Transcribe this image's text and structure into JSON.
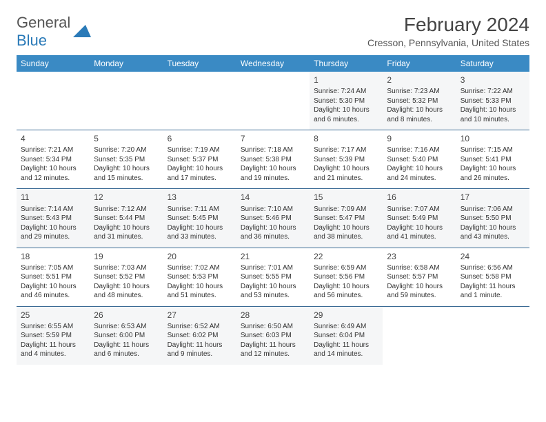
{
  "logo": {
    "text1": "General",
    "text2": "Blue"
  },
  "title": "February 2024",
  "location": "Cresson, Pennsylvania, United States",
  "colors": {
    "header_bg": "#3a8ac4",
    "border": "#3a6a94",
    "alt_row": "#f5f6f7"
  },
  "dayNames": [
    "Sunday",
    "Monday",
    "Tuesday",
    "Wednesday",
    "Thursday",
    "Friday",
    "Saturday"
  ],
  "weeks": [
    [
      null,
      null,
      null,
      null,
      {
        "n": "1",
        "sr": "Sunrise: 7:24 AM",
        "ss": "Sunset: 5:30 PM",
        "dl": "Daylight: 10 hours and 6 minutes."
      },
      {
        "n": "2",
        "sr": "Sunrise: 7:23 AM",
        "ss": "Sunset: 5:32 PM",
        "dl": "Daylight: 10 hours and 8 minutes."
      },
      {
        "n": "3",
        "sr": "Sunrise: 7:22 AM",
        "ss": "Sunset: 5:33 PM",
        "dl": "Daylight: 10 hours and 10 minutes."
      }
    ],
    [
      {
        "n": "4",
        "sr": "Sunrise: 7:21 AM",
        "ss": "Sunset: 5:34 PM",
        "dl": "Daylight: 10 hours and 12 minutes."
      },
      {
        "n": "5",
        "sr": "Sunrise: 7:20 AM",
        "ss": "Sunset: 5:35 PM",
        "dl": "Daylight: 10 hours and 15 minutes."
      },
      {
        "n": "6",
        "sr": "Sunrise: 7:19 AM",
        "ss": "Sunset: 5:37 PM",
        "dl": "Daylight: 10 hours and 17 minutes."
      },
      {
        "n": "7",
        "sr": "Sunrise: 7:18 AM",
        "ss": "Sunset: 5:38 PM",
        "dl": "Daylight: 10 hours and 19 minutes."
      },
      {
        "n": "8",
        "sr": "Sunrise: 7:17 AM",
        "ss": "Sunset: 5:39 PM",
        "dl": "Daylight: 10 hours and 21 minutes."
      },
      {
        "n": "9",
        "sr": "Sunrise: 7:16 AM",
        "ss": "Sunset: 5:40 PM",
        "dl": "Daylight: 10 hours and 24 minutes."
      },
      {
        "n": "10",
        "sr": "Sunrise: 7:15 AM",
        "ss": "Sunset: 5:41 PM",
        "dl": "Daylight: 10 hours and 26 minutes."
      }
    ],
    [
      {
        "n": "11",
        "sr": "Sunrise: 7:14 AM",
        "ss": "Sunset: 5:43 PM",
        "dl": "Daylight: 10 hours and 29 minutes."
      },
      {
        "n": "12",
        "sr": "Sunrise: 7:12 AM",
        "ss": "Sunset: 5:44 PM",
        "dl": "Daylight: 10 hours and 31 minutes."
      },
      {
        "n": "13",
        "sr": "Sunrise: 7:11 AM",
        "ss": "Sunset: 5:45 PM",
        "dl": "Daylight: 10 hours and 33 minutes."
      },
      {
        "n": "14",
        "sr": "Sunrise: 7:10 AM",
        "ss": "Sunset: 5:46 PM",
        "dl": "Daylight: 10 hours and 36 minutes."
      },
      {
        "n": "15",
        "sr": "Sunrise: 7:09 AM",
        "ss": "Sunset: 5:47 PM",
        "dl": "Daylight: 10 hours and 38 minutes."
      },
      {
        "n": "16",
        "sr": "Sunrise: 7:07 AM",
        "ss": "Sunset: 5:49 PM",
        "dl": "Daylight: 10 hours and 41 minutes."
      },
      {
        "n": "17",
        "sr": "Sunrise: 7:06 AM",
        "ss": "Sunset: 5:50 PM",
        "dl": "Daylight: 10 hours and 43 minutes."
      }
    ],
    [
      {
        "n": "18",
        "sr": "Sunrise: 7:05 AM",
        "ss": "Sunset: 5:51 PM",
        "dl": "Daylight: 10 hours and 46 minutes."
      },
      {
        "n": "19",
        "sr": "Sunrise: 7:03 AM",
        "ss": "Sunset: 5:52 PM",
        "dl": "Daylight: 10 hours and 48 minutes."
      },
      {
        "n": "20",
        "sr": "Sunrise: 7:02 AM",
        "ss": "Sunset: 5:53 PM",
        "dl": "Daylight: 10 hours and 51 minutes."
      },
      {
        "n": "21",
        "sr": "Sunrise: 7:01 AM",
        "ss": "Sunset: 5:55 PM",
        "dl": "Daylight: 10 hours and 53 minutes."
      },
      {
        "n": "22",
        "sr": "Sunrise: 6:59 AM",
        "ss": "Sunset: 5:56 PM",
        "dl": "Daylight: 10 hours and 56 minutes."
      },
      {
        "n": "23",
        "sr": "Sunrise: 6:58 AM",
        "ss": "Sunset: 5:57 PM",
        "dl": "Daylight: 10 hours and 59 minutes."
      },
      {
        "n": "24",
        "sr": "Sunrise: 6:56 AM",
        "ss": "Sunset: 5:58 PM",
        "dl": "Daylight: 11 hours and 1 minute."
      }
    ],
    [
      {
        "n": "25",
        "sr": "Sunrise: 6:55 AM",
        "ss": "Sunset: 5:59 PM",
        "dl": "Daylight: 11 hours and 4 minutes."
      },
      {
        "n": "26",
        "sr": "Sunrise: 6:53 AM",
        "ss": "Sunset: 6:00 PM",
        "dl": "Daylight: 11 hours and 6 minutes."
      },
      {
        "n": "27",
        "sr": "Sunrise: 6:52 AM",
        "ss": "Sunset: 6:02 PM",
        "dl": "Daylight: 11 hours and 9 minutes."
      },
      {
        "n": "28",
        "sr": "Sunrise: 6:50 AM",
        "ss": "Sunset: 6:03 PM",
        "dl": "Daylight: 11 hours and 12 minutes."
      },
      {
        "n": "29",
        "sr": "Sunrise: 6:49 AM",
        "ss": "Sunset: 6:04 PM",
        "dl": "Daylight: 11 hours and 14 minutes."
      },
      null,
      null
    ]
  ]
}
